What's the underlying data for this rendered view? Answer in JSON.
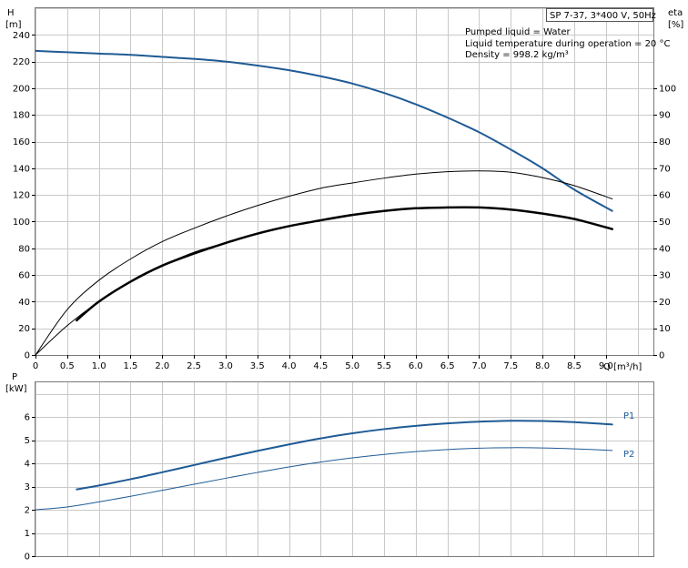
{
  "title_box": "SP 7-37, 3*400 V, 50Hz",
  "info_lines": [
    "Pumped liquid = Water",
    "Liquid temperature during operation = 20 °C",
    "Density = 998.2 kg/m³"
  ],
  "colors": {
    "blue": "#1f5b95",
    "black": "#000000",
    "grid": "#c9c9c9"
  },
  "chart_data": [
    {
      "type": "line",
      "xlabel": "Q [m³/h]",
      "x_ticks": [
        "0",
        "0.5",
        "1.0",
        "1.5",
        "2.0",
        "2.5",
        "3.0",
        "3.5",
        "4.0",
        "4.5",
        "5.0",
        "5.5",
        "6.0",
        "6.5",
        "7.0",
        "7.5",
        "8.0",
        "8.5",
        "9.0"
      ],
      "xlim": [
        0,
        9.75
      ],
      "left_axis": {
        "label_line1": "H",
        "label_line2": "[m]",
        "ylim": [
          0,
          260
        ],
        "ticks": [
          "0",
          "20",
          "40",
          "60",
          "80",
          "100",
          "120",
          "140",
          "160",
          "180",
          "200",
          "220",
          "240"
        ]
      },
      "right_axis": {
        "label_line1": "eta",
        "label_line2": "[%]",
        "ylim": [
          0,
          130
        ],
        "ticks": [
          "0",
          "10",
          "20",
          "30",
          "40",
          "50",
          "60",
          "70",
          "80",
          "90",
          "100"
        ]
      },
      "series": [
        {
          "axis": "left",
          "color": "#1f5b95",
          "width": 2,
          "x": [
            0,
            0.5,
            1.0,
            1.5,
            2.0,
            2.5,
            3.0,
            3.5,
            4.0,
            4.5,
            5.0,
            5.5,
            6.0,
            6.5,
            7.0,
            7.5,
            8.0,
            8.5,
            9.1
          ],
          "y": [
            228,
            227,
            226,
            225,
            223.5,
            222,
            220,
            217,
            213.5,
            209,
            203.5,
            196.5,
            188,
            178,
            167,
            154,
            140,
            124,
            108
          ]
        },
        {
          "axis": "right",
          "color": "#000000",
          "width": 1,
          "x": [
            0,
            0.5,
            1.0,
            1.5,
            2.0,
            2.5,
            3.0,
            3.5,
            4.0,
            4.5,
            5.0,
            5.5,
            6.0,
            6.5,
            7.0,
            7.5,
            8.0,
            8.5,
            9.1
          ],
          "y": [
            0,
            17,
            28,
            36,
            42.5,
            47.5,
            52,
            56,
            59.5,
            62.5,
            64.5,
            66.3,
            67.8,
            68.7,
            69,
            68.5,
            66.5,
            63.5,
            58.5
          ]
        },
        {
          "axis": "right",
          "color": "#000000",
          "width": 2.5,
          "x": [
            0.65,
            1.0,
            1.5,
            2.0,
            2.5,
            3.0,
            3.5,
            4.0,
            4.5,
            5.0,
            5.5,
            6.0,
            6.5,
            7.0,
            7.5,
            8.0,
            8.5,
            9.1
          ],
          "y": [
            13,
            20,
            27.5,
            33.5,
            38,
            42,
            45.5,
            48.3,
            50.5,
            52.5,
            54,
            55,
            55.3,
            55.3,
            54.5,
            53,
            51,
            47.2
          ]
        },
        {
          "axis": "left",
          "color": "#000000",
          "width": 1,
          "x": [
            0,
            0.5,
            1.0,
            1.5,
            2.0,
            2.5,
            3.0
          ],
          "y": [
            0,
            22,
            40,
            55,
            67,
            77,
            84
          ]
        }
      ]
    },
    {
      "type": "line",
      "ylabel_line1": "P",
      "ylabel_line2": "[kW]",
      "ylim": [
        0,
        7.5
      ],
      "y_ticks": [
        "0",
        "1",
        "2",
        "3",
        "4",
        "5",
        "6"
      ],
      "xlim": [
        0,
        9.75
      ],
      "series": [
        {
          "name": "P1",
          "color": "#1f5b95",
          "width": 2,
          "x": [
            0.65,
            1.0,
            1.5,
            2.0,
            2.5,
            3.0,
            3.5,
            4.0,
            4.5,
            5.0,
            5.5,
            6.0,
            6.5,
            7.0,
            7.5,
            8.0,
            8.5,
            9.1
          ],
          "y": [
            2.88,
            3.05,
            3.32,
            3.62,
            3.93,
            4.24,
            4.54,
            4.82,
            5.08,
            5.3,
            5.48,
            5.62,
            5.73,
            5.8,
            5.84,
            5.83,
            5.78,
            5.68
          ]
        },
        {
          "name": "P2",
          "color": "#1f5b95",
          "width": 1,
          "x": [
            0,
            0.5,
            1.0,
            1.5,
            2.0,
            2.5,
            3.0,
            3.5,
            4.0,
            4.5,
            5.0,
            5.5,
            6.0,
            6.5,
            7.0,
            7.5,
            8.0,
            8.5,
            9.1
          ],
          "y": [
            2.0,
            2.12,
            2.34,
            2.58,
            2.84,
            3.1,
            3.36,
            3.61,
            3.85,
            4.06,
            4.24,
            4.39,
            4.51,
            4.6,
            4.66,
            4.68,
            4.67,
            4.63,
            4.56
          ]
        }
      ]
    }
  ]
}
